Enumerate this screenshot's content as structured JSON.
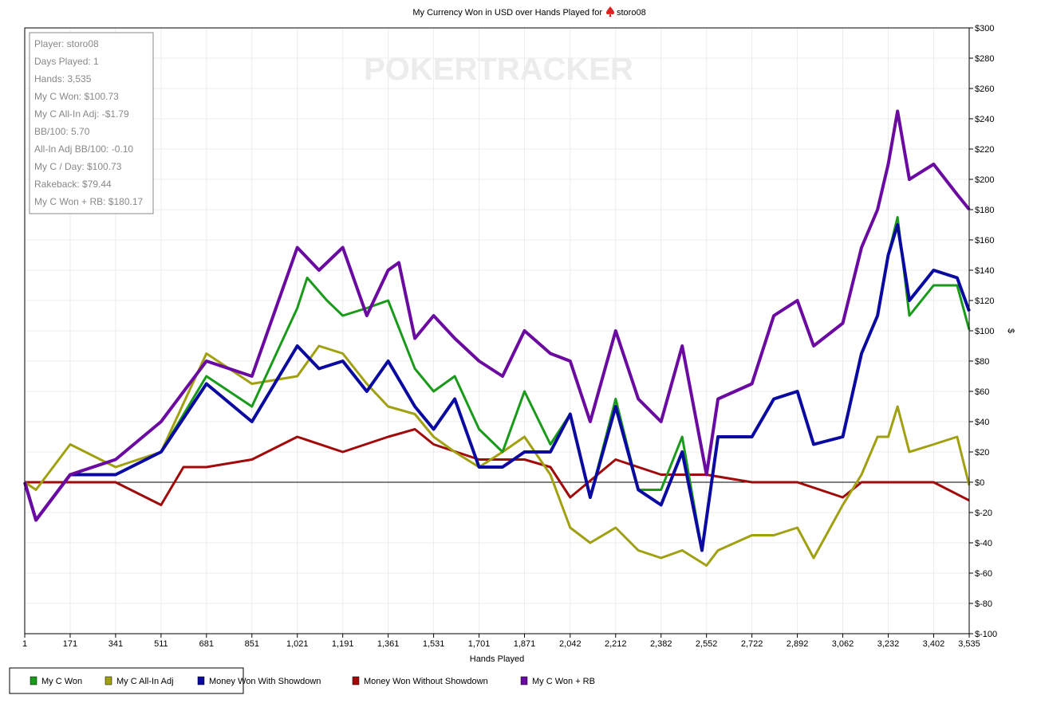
{
  "chart_data": {
    "type": "line",
    "title": "My Currency Won in USD over Hands Played for",
    "title_player": "storo08",
    "title_icon": "spade-icon",
    "watermark": "POKERTRACKER",
    "xlabel": "Hands Played",
    "ylabel": "$",
    "xlim": [
      1,
      3535
    ],
    "ylim": [
      -100,
      300
    ],
    "x_ticks": [
      "1",
      "171",
      "341",
      "511",
      "681",
      "851",
      "1,021",
      "1,191",
      "1,361",
      "1,531",
      "1,701",
      "1,871",
      "2,042",
      "2,212",
      "2,382",
      "2,552",
      "2,722",
      "2,892",
      "3,062",
      "3,232",
      "3,402",
      "3,535"
    ],
    "x_tick_values": [
      1,
      171,
      341,
      511,
      681,
      851,
      1021,
      1191,
      1361,
      1531,
      1701,
      1871,
      2042,
      2212,
      2382,
      2552,
      2722,
      2892,
      3062,
      3232,
      3402,
      3535
    ],
    "y_ticks": [
      "$300",
      "$280",
      "$260",
      "$240",
      "$220",
      "$200",
      "$180",
      "$160",
      "$140",
      "$120",
      "$100",
      "$80",
      "$60",
      "$40",
      "$20",
      "$0",
      "$-20",
      "$-40",
      "$-60",
      "$-80",
      "$-100"
    ],
    "y_tick_values": [
      300,
      280,
      260,
      240,
      220,
      200,
      180,
      160,
      140,
      120,
      100,
      80,
      60,
      40,
      20,
      0,
      -20,
      -40,
      -60,
      -80,
      -100
    ],
    "grid": true,
    "legend_position": "bottom-left",
    "stats": [
      "Player: storo08",
      "Days Played: 1",
      "Hands: 3,535",
      "My C Won: $100.73",
      "My C All-In Adj: -$1.79",
      "BB/100: 5.70",
      "All-In Adj BB/100: -0.10",
      "My C / Day: $100.73",
      "Rakeback: $79.44",
      "My C Won + RB: $180.17"
    ],
    "series": [
      {
        "name": "My C Won",
        "color": "#1a9a1a",
        "x": [
          1,
          43,
          171,
          341,
          511,
          681,
          851,
          1021,
          1058,
          1132,
          1191,
          1281,
          1361,
          1461,
          1531,
          1610,
          1701,
          1789,
          1871,
          1968,
          2042,
          2117,
          2212,
          2297,
          2382,
          2461,
          2535,
          2595,
          2722,
          2804,
          2892,
          2953,
          3062,
          3132,
          3192,
          3232,
          3267,
          3311,
          3402,
          3490,
          3535
        ],
        "y": [
          0,
          -25,
          5,
          5,
          20,
          70,
          50,
          115,
          135,
          120,
          110,
          115,
          120,
          75,
          60,
          70,
          35,
          20,
          60,
          25,
          45,
          -10,
          55,
          -5,
          -5,
          30,
          -45,
          30,
          30,
          55,
          60,
          25,
          30,
          85,
          110,
          150,
          175,
          110,
          130,
          130,
          100.73
        ]
      },
      {
        "name": "My C All-In Adj",
        "color": "#a0a010",
        "x": [
          1,
          43,
          171,
          341,
          511,
          681,
          851,
          1021,
          1102,
          1191,
          1281,
          1361,
          1461,
          1531,
          1610,
          1701,
          1789,
          1871,
          1968,
          2042,
          2117,
          2212,
          2297,
          2382,
          2461,
          2552,
          2595,
          2722,
          2804,
          2892,
          2953,
          3062,
          3132,
          3192,
          3232,
          3267,
          3311,
          3402,
          3490,
          3535
        ],
        "y": [
          0,
          -5,
          25,
          10,
          20,
          85,
          65,
          70,
          90,
          85,
          65,
          50,
          45,
          30,
          20,
          10,
          20,
          30,
          5,
          -30,
          -40,
          -30,
          -45,
          -50,
          -45,
          -55,
          -45,
          -35,
          -35,
          -30,
          -50,
          -15,
          5,
          30,
          30,
          50,
          20,
          25,
          30,
          -2
        ]
      },
      {
        "name": "Money Won With Showdown",
        "color": "#0a0aa0",
        "x": [
          1,
          43,
          171,
          341,
          511,
          681,
          851,
          1021,
          1102,
          1191,
          1281,
          1361,
          1461,
          1531,
          1610,
          1701,
          1789,
          1871,
          1968,
          2042,
          2117,
          2212,
          2297,
          2382,
          2461,
          2535,
          2595,
          2722,
          2804,
          2892,
          2953,
          3062,
          3132,
          3192,
          3232,
          3267,
          3311,
          3402,
          3490,
          3535
        ],
        "y": [
          0,
          -25,
          5,
          5,
          20,
          65,
          40,
          90,
          75,
          80,
          60,
          80,
          50,
          35,
          55,
          10,
          10,
          20,
          20,
          45,
          -10,
          50,
          -5,
          -15,
          20,
          -45,
          30,
          30,
          55,
          60,
          25,
          30,
          85,
          110,
          150,
          170,
          120,
          140,
          135,
          113
        ]
      },
      {
        "name": "Money Won Without Showdown",
        "color": "#a00a0a",
        "x": [
          1,
          171,
          341,
          511,
          595,
          681,
          851,
          1021,
          1191,
          1361,
          1461,
          1531,
          1701,
          1871,
          1968,
          2042,
          2212,
          2297,
          2382,
          2461,
          2552,
          2722,
          2892,
          3062,
          3132,
          3232,
          3402,
          3535
        ],
        "y": [
          0,
          0,
          0,
          -15,
          10,
          10,
          15,
          30,
          20,
          30,
          35,
          25,
          15,
          15,
          10,
          -10,
          15,
          10,
          5,
          5,
          5,
          0,
          0,
          -10,
          0,
          0,
          0,
          -12
        ]
      },
      {
        "name": "My C Won + RB",
        "color": "#6a0aa0",
        "x": [
          1,
          43,
          171,
          341,
          511,
          681,
          851,
          1021,
          1102,
          1191,
          1281,
          1361,
          1401,
          1461,
          1531,
          1610,
          1701,
          1789,
          1871,
          1968,
          2042,
          2117,
          2212,
          2297,
          2382,
          2461,
          2552,
          2595,
          2722,
          2804,
          2892,
          2953,
          3062,
          3132,
          3192,
          3232,
          3267,
          3311,
          3402,
          3490,
          3535
        ],
        "y": [
          0,
          -25,
          5,
          15,
          40,
          80,
          70,
          155,
          140,
          155,
          110,
          140,
          145,
          95,
          110,
          95,
          80,
          70,
          100,
          85,
          80,
          40,
          100,
          55,
          40,
          90,
          5,
          55,
          65,
          110,
          120,
          90,
          105,
          155,
          180,
          210,
          245,
          200,
          210,
          190,
          180.17
        ]
      }
    ]
  }
}
